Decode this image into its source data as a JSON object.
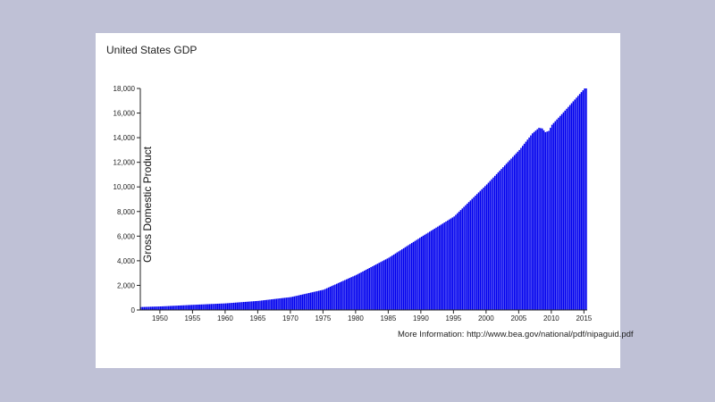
{
  "chart_data": {
    "type": "bar",
    "title": "United States GDP",
    "xlabel": "",
    "ylabel": "Gross Domestic Product",
    "xlim": [
      1947,
      2015.5
    ],
    "ylim": [
      0,
      18000
    ],
    "x_ticks": [
      "1950",
      "1955",
      "1960",
      "1965",
      "1970",
      "1975",
      "1980",
      "1985",
      "1990",
      "1995",
      "2000",
      "2005",
      "2010",
      "2015"
    ],
    "y_ticks": [
      "0",
      "2,000",
      "4,000",
      "6,000",
      "8,000",
      "10,000",
      "12,000",
      "14,000",
      "16,000",
      "18,000"
    ],
    "bar_color": "#0000ee",
    "frequency": "quarterly",
    "annual_points": {
      "x": [
        1947,
        1950,
        1955,
        1960,
        1965,
        1970,
        1975,
        1980,
        1985,
        1990,
        1995,
        2000,
        2005,
        2007,
        2008,
        2008.5,
        2009,
        2009.5,
        2010,
        2012,
        2014,
        2015
      ],
      "y": [
        240,
        290,
        420,
        540,
        740,
        1050,
        1650,
        2850,
        4250,
        5950,
        7600,
        10200,
        13000,
        14350,
        14800,
        14750,
        14450,
        14550,
        15050,
        16200,
        17400,
        18000
      ]
    },
    "grid": false,
    "legend": "none"
  },
  "footer": {
    "source": "More Information: http://www.bea.gov/national/pdf/nipaguid.pdf"
  }
}
